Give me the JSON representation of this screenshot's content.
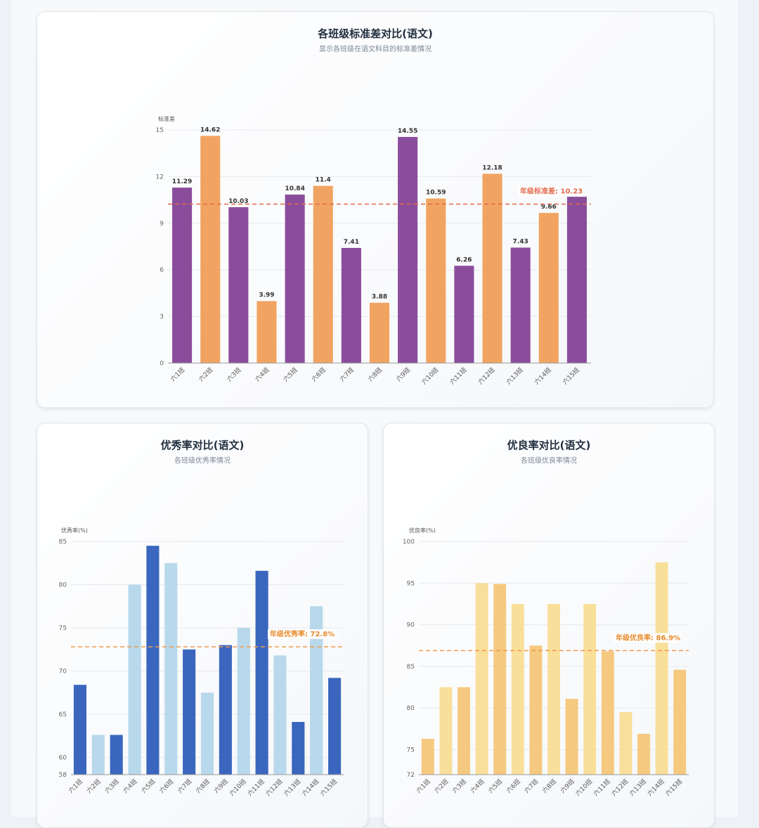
{
  "charts": {
    "std": {
      "title": "各班级标准差对比(语文)",
      "subtitle": "显示各班级在语文科目的标准差情况"
    },
    "excellent": {
      "title": "优秀率对比(语文)",
      "subtitle": "各班级优秀率情况"
    },
    "good": {
      "title": "优良率对比(语文)",
      "subtitle": "各班级优良率情况"
    }
  },
  "colors": {
    "purple": "#8a4d9c",
    "orange": "#f1a461",
    "avg_red": "#e06a4e",
    "dark_blue": "#3a66be",
    "light_blue": "#b8d8ec",
    "avg_orange": "#ef9a4a",
    "dark_yellow": "#f5c97f",
    "light_yellow": "#f8df9a",
    "avg_text_orange": "#e88a2b"
  },
  "chart_data": [
    {
      "type": "bar",
      "categories": [
        "六1班",
        "六2班",
        "六3班",
        "六4班",
        "六5班",
        "六6班",
        "六7班",
        "六8班",
        "六9班",
        "六10班",
        "六11班",
        "六12班",
        "六13班",
        "六14班",
        "六15班"
      ],
      "values": [
        11.29,
        14.62,
        10.03,
        3.99,
        10.84,
        11.4,
        7.41,
        3.88,
        14.55,
        10.59,
        6.26,
        12.18,
        7.43,
        9.66,
        10.7
      ],
      "data_labels": [
        "11.29",
        "14.62",
        "10.03",
        "3.99",
        "10.84",
        "11.4",
        "7.41",
        "3.88",
        "14.55",
        "10.59",
        "6.26",
        "12.18",
        "7.43",
        "9.66",
        ""
      ],
      "ylabel": "标准差",
      "ylim": [
        0,
        15
      ],
      "yticks": [
        "0",
        "3",
        "6",
        "9",
        "12",
        "15"
      ],
      "average": 10.23,
      "average_label": "年级标准差: 10.23",
      "grid": true
    },
    {
      "type": "bar",
      "categories": [
        "六1班",
        "六2班",
        "六3班",
        "六4班",
        "六5班",
        "六6班",
        "六7班",
        "六8班",
        "六9班",
        "六10班",
        "六11班",
        "六12班",
        "六13班",
        "六14班",
        "六15班"
      ],
      "values": [
        68.4,
        62.6,
        62.6,
        80.0,
        84.5,
        82.5,
        72.5,
        67.5,
        73.0,
        75.0,
        81.6,
        71.8,
        64.1,
        77.5,
        69.2
      ],
      "ylabel": "优秀率(%)",
      "ylim": [
        58,
        85
      ],
      "yticks": [
        "58",
        "60",
        "65",
        "70",
        "75",
        "80",
        "85"
      ],
      "average": 72.8,
      "average_label": "年级优秀率: 72.8%",
      "grid": true
    },
    {
      "type": "bar",
      "categories": [
        "六1班",
        "六2班",
        "六3班",
        "六4班",
        "六5班",
        "六6班",
        "六7班",
        "六8班",
        "六9班",
        "六10班",
        "六11班",
        "六12班",
        "六13班",
        "六14班",
        "六15班"
      ],
      "values": [
        76.3,
        82.5,
        82.5,
        95.0,
        94.9,
        92.5,
        87.5,
        92.5,
        81.1,
        92.5,
        86.8,
        79.5,
        76.9,
        97.5,
        84.6
      ],
      "ylabel": "优良率(%)",
      "ylim": [
        72,
        100
      ],
      "yticks": [
        "72",
        "75",
        "80",
        "85",
        "90",
        "95",
        "100"
      ],
      "average": 86.9,
      "average_label": "年级优良率: 86.9%",
      "grid": true
    }
  ]
}
